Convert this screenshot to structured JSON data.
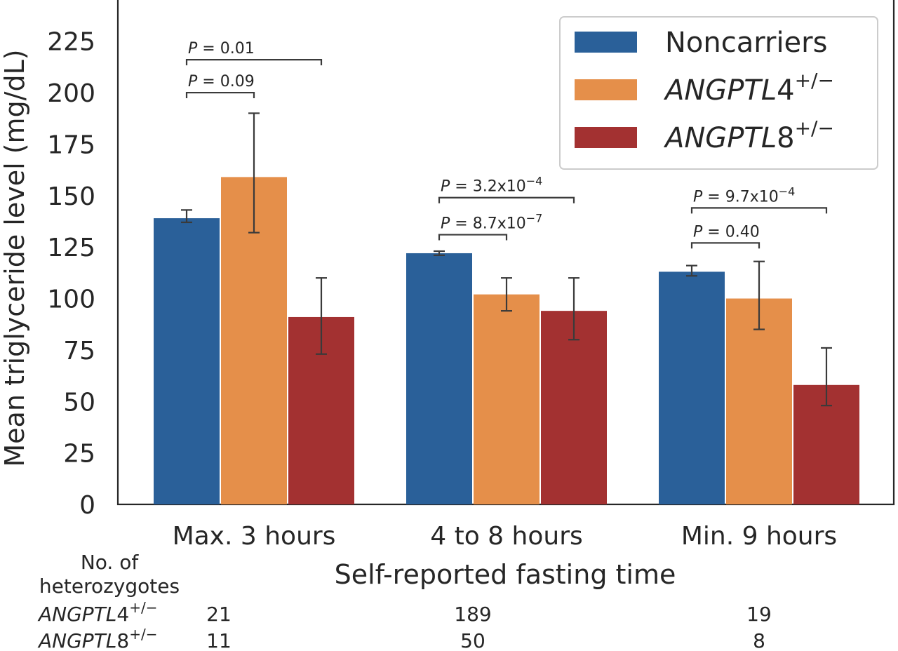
{
  "chart_data": {
    "type": "bar",
    "categories": [
      "Max. 3 hours",
      "4 to 8 hours",
      "Min. 9 hours"
    ],
    "series": [
      {
        "name": "Noncarriers",
        "values": [
          139,
          122,
          113
        ],
        "err_low": [
          137,
          121,
          111
        ],
        "err_high": [
          143,
          123,
          116
        ]
      },
      {
        "name": "ANGPTL4+/−",
        "values": [
          159,
          102,
          100
        ],
        "err_low": [
          132,
          94,
          85
        ],
        "err_high": [
          190,
          110,
          118
        ]
      },
      {
        "name": "ANGPTL8+/−",
        "values": [
          91,
          94,
          58
        ],
        "err_low": [
          73,
          80,
          48
        ],
        "err_high": [
          110,
          110,
          76
        ]
      }
    ],
    "legend_labels": [
      {
        "text": "Noncarriers",
        "italic": "",
        "sup": ""
      },
      {
        "text": "",
        "italic": "ANGPTL",
        "rest": "4",
        "sup": "+/−"
      },
      {
        "text": "",
        "italic": "ANGPTL",
        "rest": "8",
        "sup": "+/−"
      }
    ],
    "colors": [
      "#2a6099",
      "#e58f4a",
      "#a33131"
    ],
    "ylabel": "Mean triglyceride level (mg/dL)",
    "xlabel": "Self-reported fasting time",
    "ylim": [
      0,
      245
    ],
    "yticks": [
      0,
      25,
      50,
      75,
      100,
      125,
      150,
      175,
      200,
      225
    ],
    "grid": false,
    "legend_position": "top-right",
    "annotations": [
      {
        "group": 0,
        "from": 0,
        "to": 1,
        "level": 200,
        "label_prefix": "P",
        "label_value": " = 0.09",
        "label_sup": ""
      },
      {
        "group": 0,
        "from": 0,
        "to": 2,
        "level": 216,
        "label_prefix": "P",
        "label_value": " = 0.01",
        "label_sup": ""
      },
      {
        "group": 1,
        "from": 0,
        "to": 1,
        "level": 131,
        "label_prefix": "P",
        "label_value": " = 8.7x10",
        "label_sup": "−7"
      },
      {
        "group": 1,
        "from": 0,
        "to": 2,
        "level": 149,
        "label_prefix": "P",
        "label_value": " = 3.2x10",
        "label_sup": "−4"
      },
      {
        "group": 2,
        "from": 0,
        "to": 1,
        "level": 127,
        "label_prefix": "P",
        "label_value": " = 0.40",
        "label_sup": ""
      },
      {
        "group": 2,
        "from": 0,
        "to": 2,
        "level": 144,
        "label_prefix": "P",
        "label_value": " = 9.7x10",
        "label_sup": "−4"
      }
    ],
    "table": {
      "header_line1": "No. of",
      "header_line2": "heterozygotes",
      "rows": [
        {
          "italic": "ANGPTL",
          "rest": "4",
          "sup": "+/−",
          "counts": [
            "21",
            "189",
            "19"
          ]
        },
        {
          "italic": "ANGPTL",
          "rest": "8",
          "sup": "+/−",
          "counts": [
            "11",
            "50",
            "8"
          ]
        }
      ]
    }
  }
}
